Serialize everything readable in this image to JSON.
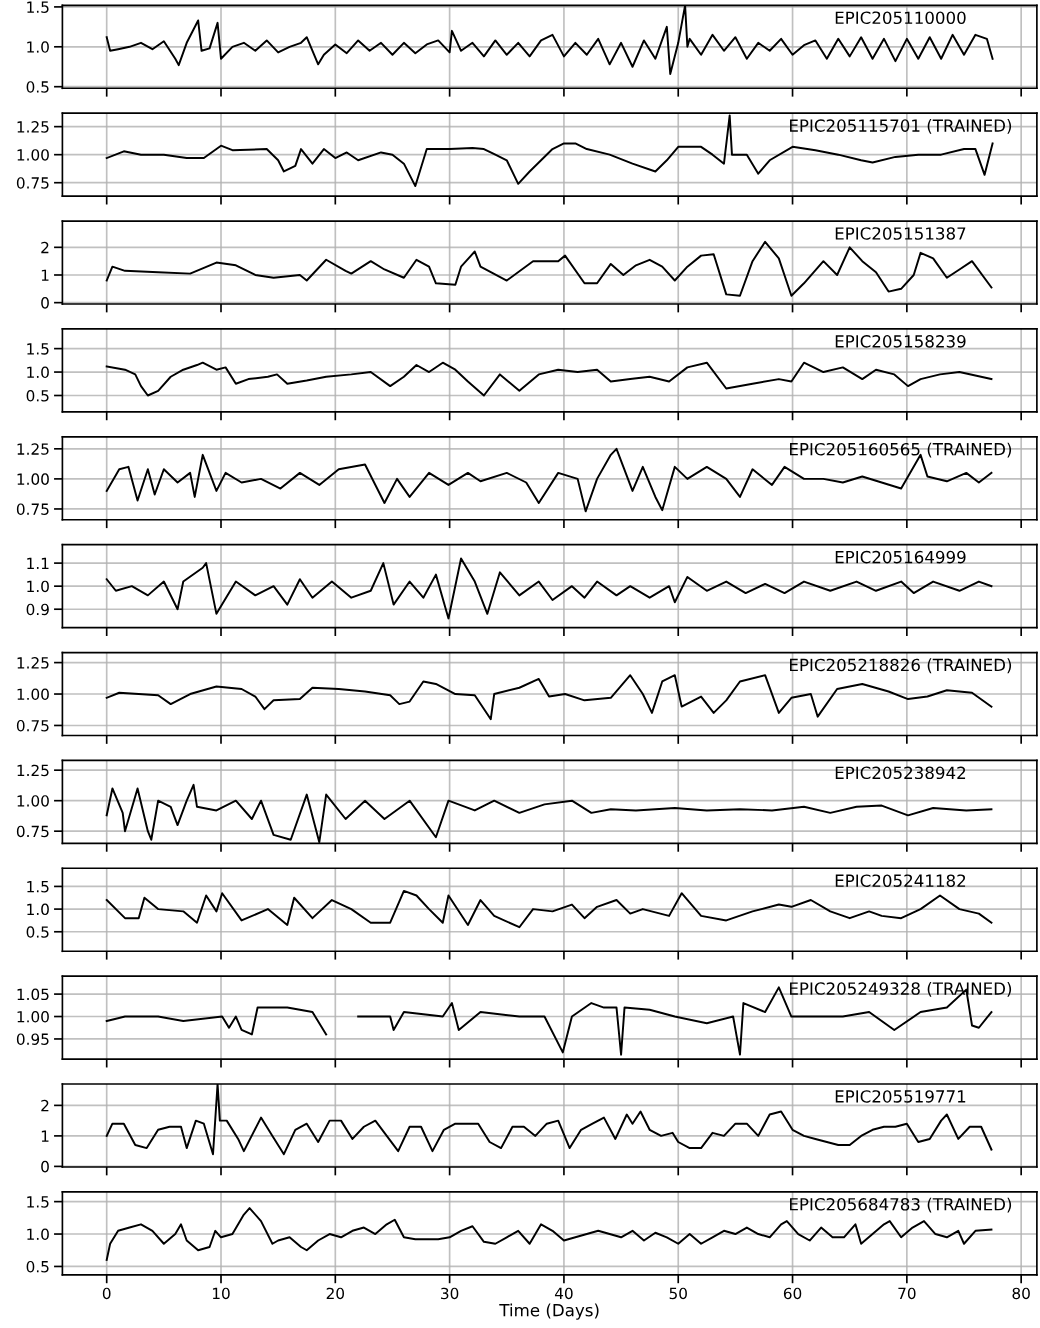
{
  "chart_data": [
    {
      "type": "line",
      "title": "EPIC205110000",
      "xlim": [
        -3.875,
        81.375
      ],
      "xticks": [
        0,
        10,
        20,
        30,
        40,
        50,
        60,
        70,
        80
      ],
      "ylim": [
        0.48,
        1.52
      ],
      "yticks": [
        0.5,
        {
          "value": 1,
          "label": "1.0"
        },
        1.5
      ],
      "grid": true,
      "tick_labels": "y",
      "series": [
        {
          "color": "#000000",
          "x": [
            0,
            0.3,
            1,
            2,
            3,
            4,
            5,
            6,
            6.3,
            7,
            8,
            8.3,
            9,
            9.7,
            10,
            11,
            12,
            13,
            14,
            15,
            16,
            17,
            17.5,
            18.5,
            19,
            20,
            21,
            22,
            23,
            24,
            25,
            26,
            27,
            28,
            29,
            30,
            30.2,
            31,
            32,
            33,
            34,
            35,
            36,
            37,
            38,
            39,
            40,
            41,
            42,
            43,
            44,
            45,
            46,
            47,
            48,
            49,
            49.3,
            50,
            50.6,
            50.8,
            51,
            52,
            53,
            54,
            55,
            56,
            57,
            58,
            59,
            60,
            61,
            62,
            63,
            64,
            65,
            66,
            67,
            68,
            69,
            70,
            71,
            72,
            73,
            74,
            75,
            76,
            77,
            77.5
          ],
          "values": [
            1.12,
            0.95,
            0.97,
            1.0,
            1.05,
            0.97,
            1.07,
            0.85,
            0.77,
            1.05,
            1.33,
            0.95,
            0.98,
            1.3,
            0.85,
            1.0,
            1.05,
            0.95,
            1.08,
            0.93,
            1.0,
            1.05,
            1.12,
            0.78,
            0.9,
            1.03,
            0.92,
            1.08,
            0.95,
            1.05,
            0.9,
            1.05,
            0.92,
            1.03,
            1.08,
            0.93,
            1.2,
            0.95,
            1.05,
            0.88,
            1.08,
            0.9,
            1.05,
            0.88,
            1.08,
            1.15,
            0.88,
            1.05,
            0.9,
            1.1,
            0.78,
            1.05,
            0.75,
            1.08,
            0.85,
            1.25,
            0.66,
            1.05,
            1.52,
            1.0,
            1.1,
            0.9,
            1.15,
            0.95,
            1.12,
            0.85,
            1.05,
            0.95,
            1.1,
            0.9,
            1.02,
            1.08,
            0.85,
            1.1,
            0.88,
            1.12,
            0.85,
            1.1,
            0.82,
            1.1,
            0.85,
            1.12,
            0.85,
            1.15,
            0.9,
            1.15,
            1.1,
            0.85
          ]
        }
      ]
    },
    {
      "type": "line",
      "title": "EPIC205115701 (TRAINED)",
      "xlim": [
        -3.875,
        81.375
      ],
      "xticks": [
        0,
        10,
        20,
        30,
        40,
        50,
        60,
        70,
        80
      ],
      "ylim": [
        0.63,
        1.37
      ],
      "yticks": [
        {
          "value": 0.75,
          "label": "0.75"
        },
        {
          "value": 1,
          "label": "1.00"
        },
        {
          "value": 1.25,
          "label": "1.25"
        }
      ],
      "grid": true,
      "tick_labels": "y",
      "series": [
        {
          "color": "#000000",
          "x": [
            0,
            1.5,
            3,
            5,
            7,
            8.5,
            10,
            11,
            14,
            15,
            15.5,
            16.5,
            17,
            18,
            19,
            20,
            21,
            22,
            24,
            25,
            26,
            27,
            28,
            30,
            32,
            33,
            34,
            35,
            36,
            37,
            38,
            39,
            40,
            41,
            42,
            44,
            46,
            48,
            49,
            50,
            52,
            53,
            54,
            54.5,
            54.7,
            56,
            57,
            58,
            60,
            62,
            64,
            66,
            67,
            69,
            71,
            73,
            75,
            76,
            76.8,
            77.5
          ],
          "values": [
            0.97,
            1.03,
            1.0,
            1.0,
            0.97,
            0.97,
            1.08,
            1.04,
            1.05,
            0.95,
            0.85,
            0.9,
            1.05,
            0.92,
            1.05,
            0.97,
            1.02,
            0.95,
            1.02,
            1.0,
            0.92,
            0.72,
            1.05,
            1.05,
            1.06,
            1.05,
            1.0,
            0.95,
            0.74,
            0.85,
            0.95,
            1.05,
            1.1,
            1.1,
            1.05,
            1.0,
            0.92,
            0.85,
            0.95,
            1.07,
            1.07,
            1.0,
            0.92,
            1.35,
            1.0,
            1.0,
            0.83,
            0.95,
            1.07,
            1.04,
            1.0,
            0.95,
            0.93,
            0.98,
            1.0,
            1.0,
            1.05,
            1.05,
            0.82,
            1.1
          ]
        }
      ]
    },
    {
      "type": "line",
      "title": "EPIC205151387",
      "xlim": [
        -3.875,
        81.375
      ],
      "xticks": [
        0,
        10,
        20,
        30,
        40,
        50,
        60,
        70,
        80
      ],
      "ylim": [
        -0.05,
        2.95
      ],
      "yticks": [
        0,
        1,
        2
      ],
      "grid": true,
      "tick_labels": "y",
      "series": [
        {
          "color": "#000000",
          "x": [
            0,
            0.5,
            1.6,
            4.5,
            7.3,
            9.6,
            11.3,
            13,
            14.6,
            16.9,
            17.5,
            19.2,
            20.9,
            21.4,
            23.1,
            24.3,
            26,
            27.1,
            28.2,
            28.8,
            30.5,
            31,
            32.2,
            32.7,
            35,
            37.3,
            39.5,
            40.1,
            41.8,
            42.9,
            44.1,
            45.2,
            46.3,
            47.5,
            48.6,
            49.7,
            50.8,
            52,
            53.1,
            54.2,
            55.4,
            56.5,
            57.6,
            58.8,
            59.9,
            61,
            62.7,
            63.9,
            65,
            66.1,
            67.3,
            68.4,
            69.5,
            70.6,
            71.2,
            72.3,
            73.5,
            74.6,
            75.7,
            77.4
          ],
          "values": [
            0.8,
            1.3,
            1.15,
            1.1,
            1.05,
            1.45,
            1.35,
            1.0,
            0.9,
            1.0,
            0.8,
            1.55,
            1.15,
            1.05,
            1.5,
            1.2,
            0.9,
            1.55,
            1.3,
            0.7,
            0.65,
            1.3,
            1.85,
            1.3,
            0.8,
            1.5,
            1.5,
            1.7,
            0.7,
            0.7,
            1.4,
            1.0,
            1.35,
            1.55,
            1.3,
            0.8,
            1.3,
            1.7,
            1.75,
            0.3,
            0.25,
            1.5,
            2.2,
            1.6,
            0.25,
            0.7,
            1.5,
            1.0,
            2.0,
            1.5,
            1.1,
            0.4,
            0.5,
            1.0,
            1.8,
            1.6,
            0.9,
            1.2,
            1.5,
            0.55
          ]
        }
      ]
    },
    {
      "type": "line",
      "title": "EPIC205158239",
      "xlim": [
        -3.875,
        81.375
      ],
      "xticks": [
        0,
        10,
        20,
        30,
        40,
        50,
        60,
        70,
        80
      ],
      "ylim": [
        0.15,
        1.92
      ],
      "yticks": [
        0.5,
        {
          "value": 1,
          "label": "1.0"
        },
        1.5
      ],
      "grid": true,
      "tick_labels": "y",
      "series": [
        {
          "color": "#000000",
          "x": [
            0,
            1.6,
            2.5,
            3,
            3.6,
            4.5,
            5.6,
            6.7,
            7.9,
            8.4,
            9.6,
            10.4,
            11.3,
            12.4,
            14.1,
            14.9,
            15.8,
            17.5,
            19.2,
            21.4,
            23.1,
            24.8,
            26,
            27.1,
            28.2,
            29.4,
            30.5,
            31.6,
            33,
            34.4,
            36.1,
            37.8,
            39.5,
            41.2,
            42.9,
            44.1,
            45.8,
            47.5,
            49.2,
            50.8,
            52.5,
            54.2,
            56.5,
            58.8,
            59.9,
            61,
            62.7,
            64.4,
            66.1,
            67.3,
            68.9,
            70.1,
            71.2,
            72.9,
            74.6,
            77.4
          ],
          "values": [
            1.12,
            1.05,
            0.95,
            0.7,
            0.5,
            0.6,
            0.9,
            1.05,
            1.15,
            1.2,
            1.05,
            1.1,
            0.75,
            0.85,
            0.9,
            0.95,
            0.75,
            0.82,
            0.9,
            0.95,
            1.0,
            0.7,
            0.9,
            1.15,
            1.0,
            1.2,
            1.05,
            0.8,
            0.5,
            0.95,
            0.6,
            0.95,
            1.05,
            1.0,
            1.05,
            0.8,
            0.85,
            0.9,
            0.8,
            1.1,
            1.2,
            0.65,
            0.75,
            0.85,
            0.8,
            1.2,
            1.0,
            1.1,
            0.85,
            1.05,
            0.95,
            0.7,
            0.85,
            0.95,
            1.0,
            0.85
          ]
        }
      ]
    },
    {
      "type": "line",
      "title": "EPIC205160565 (TRAINED)",
      "xlim": [
        -3.875,
        81.375
      ],
      "xticks": [
        0,
        10,
        20,
        30,
        40,
        50,
        60,
        70,
        80
      ],
      "ylim": [
        0.66,
        1.35
      ],
      "yticks": [
        {
          "value": 0.75,
          "label": "0.75"
        },
        {
          "value": 1,
          "label": "1.00"
        },
        {
          "value": 1.25,
          "label": "1.25"
        }
      ],
      "grid": true,
      "tick_labels": "y",
      "series": [
        {
          "color": "#000000",
          "x": [
            0,
            1.1,
            1.9,
            2.7,
            3.6,
            4.2,
            5,
            6.2,
            7.3,
            7.7,
            8.4,
            9.6,
            10.4,
            11.8,
            13.5,
            15.2,
            16.9,
            18.6,
            20.3,
            22.6,
            24.3,
            25.4,
            26.5,
            28.2,
            29.9,
            31.6,
            32.7,
            35,
            36.7,
            37.8,
            39.5,
            41.2,
            41.9,
            42.9,
            44.1,
            44.6,
            45.2,
            46,
            46.9,
            48,
            48.6,
            49.7,
            50.8,
            52.5,
            54.2,
            55.4,
            56.5,
            58.2,
            59.3,
            61,
            62.7,
            64.4,
            66.1,
            67.8,
            69.5,
            71.2,
            71.8,
            73.5,
            75.2,
            76.3,
            77.4
          ],
          "values": [
            0.9,
            1.08,
            1.1,
            0.82,
            1.08,
            0.87,
            1.08,
            0.97,
            1.05,
            0.85,
            1.2,
            0.9,
            1.05,
            0.97,
            1.0,
            0.92,
            1.05,
            0.95,
            1.08,
            1.12,
            0.8,
            1.0,
            0.85,
            1.05,
            0.95,
            1.05,
            0.98,
            1.05,
            0.97,
            0.8,
            1.05,
            1.0,
            0.73,
            1.0,
            1.2,
            1.25,
            1.1,
            0.9,
            1.1,
            0.85,
            0.74,
            1.1,
            1.0,
            1.1,
            1.0,
            0.85,
            1.08,
            0.95,
            1.1,
            1.0,
            1.0,
            0.97,
            1.02,
            0.97,
            0.92,
            1.2,
            1.02,
            0.98,
            1.05,
            0.97,
            1.05
          ]
        }
      ]
    },
    {
      "type": "line",
      "title": "EPIC205164999",
      "xlim": [
        -3.875,
        81.375
      ],
      "xticks": [
        0,
        10,
        20,
        30,
        40,
        50,
        60,
        70,
        80
      ],
      "ylim": [
        0.82,
        1.18
      ],
      "yticks": [
        0.9,
        {
          "value": 1,
          "label": "1.0"
        },
        1.1
      ],
      "grid": true,
      "tick_labels": "y",
      "series": [
        {
          "color": "#000000",
          "x": [
            0,
            0.8,
            2.2,
            3.6,
            5,
            6.2,
            6.7,
            8.4,
            8.7,
            9.6,
            11.3,
            13,
            14.6,
            15.8,
            16.9,
            18,
            19.7,
            21.4,
            23.1,
            24.2,
            25.1,
            26.5,
            27.7,
            28.8,
            29.9,
            31,
            32.2,
            33.3,
            34.4,
            36.1,
            37.8,
            39,
            40.7,
            41.8,
            42.9,
            44.6,
            45.8,
            47.5,
            49.2,
            49.7,
            50.8,
            52.5,
            54.2,
            55.9,
            57.6,
            59.3,
            61,
            63.3,
            65.6,
            67.3,
            69.5,
            70.6,
            72.3,
            74.6,
            76.3,
            77.4
          ],
          "values": [
            1.03,
            0.98,
            1.0,
            0.96,
            1.02,
            0.9,
            1.02,
            1.08,
            1.1,
            0.88,
            1.02,
            0.96,
            1.0,
            0.92,
            1.03,
            0.95,
            1.02,
            0.95,
            0.98,
            1.1,
            0.92,
            1.02,
            0.95,
            1.05,
            0.86,
            1.12,
            1.02,
            0.88,
            1.06,
            0.96,
            1.02,
            0.94,
            1.0,
            0.95,
            1.02,
            0.96,
            1.0,
            0.95,
            1.0,
            0.93,
            1.04,
            0.98,
            1.02,
            0.97,
            1.01,
            0.97,
            1.02,
            0.98,
            1.02,
            0.98,
            1.02,
            0.97,
            1.02,
            0.98,
            1.02,
            1.0
          ]
        }
      ]
    },
    {
      "type": "line",
      "title": "EPIC205218826 (TRAINED)",
      "xlim": [
        -3.875,
        81.375
      ],
      "xticks": [
        0,
        10,
        20,
        30,
        40,
        50,
        60,
        70,
        80
      ],
      "ylim": [
        0.67,
        1.33
      ],
      "yticks": [
        {
          "value": 0.75,
          "label": "0.75"
        },
        {
          "value": 1,
          "label": "1.00"
        },
        {
          "value": 1.25,
          "label": "1.25"
        }
      ],
      "grid": true,
      "tick_labels": "y",
      "series": [
        {
          "color": "#000000",
          "x": [
            0,
            1.1,
            4.5,
            5.6,
            7.3,
            9.6,
            11.8,
            13,
            13.8,
            14.6,
            16.9,
            18,
            20.3,
            22.6,
            24.8,
            25.6,
            26.5,
            27.7,
            28.8,
            30.5,
            32.2,
            33.6,
            33.9,
            36.1,
            37.8,
            38.7,
            40.1,
            41.8,
            44.1,
            45.8,
            46.9,
            47.7,
            48.6,
            49.7,
            50.3,
            52,
            53.1,
            54.2,
            55.4,
            57.6,
            58.8,
            59.9,
            61.6,
            62.2,
            63.9,
            66.1,
            68.4,
            70.1,
            71.8,
            73.5,
            75.7,
            77.4
          ],
          "values": [
            0.97,
            1.01,
            0.99,
            0.92,
            1.0,
            1.06,
            1.04,
            0.98,
            0.88,
            0.95,
            0.96,
            1.05,
            1.04,
            1.02,
            0.99,
            0.92,
            0.94,
            1.1,
            1.08,
            1.0,
            0.99,
            0.8,
            1.0,
            1.05,
            1.12,
            0.98,
            1.0,
            0.95,
            0.97,
            1.15,
            1.0,
            0.85,
            1.1,
            1.15,
            0.9,
            0.98,
            0.85,
            0.95,
            1.1,
            1.15,
            0.85,
            0.97,
            1.0,
            0.82,
            1.04,
            1.08,
            1.02,
            0.96,
            0.98,
            1.03,
            1.01,
            0.9
          ]
        }
      ]
    },
    {
      "type": "line",
      "title": "EPIC205238942",
      "xlim": [
        -3.875,
        81.375
      ],
      "xticks": [
        0,
        10,
        20,
        30,
        40,
        50,
        60,
        70,
        80
      ],
      "ylim": [
        0.65,
        1.33
      ],
      "yticks": [
        {
          "value": 0.75,
          "label": "0.75"
        },
        {
          "value": 1,
          "label": "1.00"
        },
        {
          "value": 1.25,
          "label": "1.25"
        }
      ],
      "grid": true,
      "tick_labels": "y",
      "series": [
        {
          "color": "#000000",
          "x": [
            0,
            0.5,
            1.4,
            1.6,
            2.7,
            3.6,
            3.9,
            4.5,
            5.6,
            6.2,
            7,
            7.6,
            7.9,
            9.6,
            11.3,
            12.7,
            13.5,
            14.6,
            16.1,
            17.5,
            18.6,
            19.2,
            20.9,
            22.6,
            24.3,
            26.5,
            28.8,
            29.9,
            32.2,
            33.9,
            36.1,
            38.3,
            40.7,
            42.4,
            44.1,
            46.3,
            49.7,
            52.5,
            55.4,
            58.2,
            61,
            63.3,
            65.6,
            67.8,
            70.1,
            72.3,
            75.2,
            77.4
          ],
          "values": [
            0.88,
            1.1,
            0.9,
            0.75,
            1.1,
            0.75,
            0.68,
            1.0,
            0.95,
            0.8,
            1.0,
            1.13,
            0.95,
            0.92,
            1.0,
            0.85,
            1.0,
            0.72,
            0.68,
            1.05,
            0.66,
            1.05,
            0.85,
            1.0,
            0.85,
            1.0,
            0.7,
            1.0,
            0.92,
            1.0,
            0.9,
            0.97,
            1.0,
            0.9,
            0.93,
            0.92,
            0.94,
            0.92,
            0.93,
            0.92,
            0.95,
            0.9,
            0.95,
            0.96,
            0.88,
            0.94,
            0.92,
            0.93
          ]
        }
      ]
    },
    {
      "type": "line",
      "title": "EPIC205241182",
      "xlim": [
        -3.875,
        81.375
      ],
      "xticks": [
        0,
        10,
        20,
        30,
        40,
        50,
        60,
        70,
        80
      ],
      "ylim": [
        0.07,
        1.9
      ],
      "yticks": [
        0.5,
        {
          "value": 1,
          "label": "1.0"
        },
        1.5
      ],
      "grid": true,
      "tick_labels": "y",
      "series": [
        {
          "color": "#000000",
          "x": [
            0,
            1.6,
            2.8,
            3.3,
            4.5,
            6.7,
            7.9,
            8.7,
            9.6,
            10.1,
            11.8,
            14.1,
            15.8,
            16.4,
            18,
            19.7,
            21.4,
            23.1,
            24.8,
            26,
            27.1,
            28.2,
            29.4,
            29.9,
            31.6,
            32.7,
            33.9,
            36.1,
            37.3,
            39,
            40.7,
            41.8,
            42.9,
            44.6,
            45.8,
            46.9,
            49.2,
            50.3,
            52,
            54.2,
            56.5,
            58.8,
            59.9,
            61.6,
            63.3,
            65,
            66.7,
            67.8,
            69.5,
            71.2,
            72.9,
            74.6,
            76.3,
            77.4
          ],
          "values": [
            1.2,
            0.8,
            0.8,
            1.25,
            1.0,
            0.95,
            0.7,
            1.3,
            0.95,
            1.35,
            0.75,
            1.0,
            0.65,
            1.25,
            0.8,
            1.2,
            1.0,
            0.7,
            0.7,
            1.4,
            1.3,
            1.0,
            0.7,
            1.3,
            0.65,
            1.2,
            0.85,
            0.6,
            1.0,
            0.95,
            1.1,
            0.8,
            1.05,
            1.2,
            0.9,
            1.0,
            0.85,
            1.35,
            0.85,
            0.75,
            0.95,
            1.1,
            1.05,
            1.2,
            0.95,
            0.8,
            0.95,
            0.85,
            0.8,
            1.0,
            1.3,
            1.0,
            0.9,
            0.7
          ]
        }
      ]
    },
    {
      "type": "line",
      "title": "EPIC205249328 (TRAINED)",
      "xlim": [
        -3.875,
        81.375
      ],
      "xticks": [
        0,
        10,
        20,
        30,
        40,
        50,
        60,
        70,
        80
      ],
      "ylim": [
        0.905,
        1.09
      ],
      "yticks": [
        {
          "value": 0.95,
          "label": "0.95"
        },
        {
          "value": 1,
          "label": "1.00"
        },
        {
          "value": 1.05,
          "label": "1.05"
        }
      ],
      "grid": true,
      "tick_labels": "y",
      "series": [
        {
          "color": "#000000",
          "x": [
            0,
            1.6,
            4.5,
            6.7,
            10.1,
            10.7,
            11.3,
            11.8,
            12.7,
            13.2,
            15.8,
            18,
            19.2,
            20.3,
            21.7,
            22,
            24.8,
            25.1,
            26,
            29.4,
            30.2,
            30.8,
            32.7,
            36.1,
            38.3,
            39.9,
            40.7,
            42.4,
            43.5,
            44.6,
            45,
            45.3,
            47.5,
            49.7,
            52.5,
            54.8,
            55.4,
            55.7,
            57.6,
            58.8,
            59.9,
            62.2,
            64.4,
            66.7,
            68.9,
            71.2,
            73.5,
            75.2,
            75.7,
            76.3,
            77.4
          ],
          "values": [
            0.99,
            1.0,
            1.0,
            0.99,
            1.0,
            0.975,
            1.0,
            0.97,
            0.96,
            1.02,
            1.02,
            1.01,
            0.96,
            null,
            null,
            1.0,
            1.0,
            0.97,
            1.01,
            1.0,
            1.03,
            0.97,
            1.01,
            1.0,
            1.0,
            0.92,
            1.0,
            1.03,
            1.02,
            1.02,
            0.915,
            1.02,
            1.015,
            1.0,
            0.985,
            1.0,
            0.915,
            1.03,
            1.01,
            1.065,
            1.0,
            1.0,
            1.0,
            1.01,
            0.97,
            1.01,
            1.02,
            1.06,
            0.98,
            0.975,
            1.01
          ]
        }
      ]
    },
    {
      "type": "line",
      "title": "EPIC205519771",
      "xlim": [
        -3.875,
        81.375
      ],
      "xticks": [
        0,
        10,
        20,
        30,
        40,
        50,
        60,
        70,
        80
      ],
      "ylim": [
        -0.02,
        2.7
      ],
      "yticks": [
        0,
        1,
        2
      ],
      "grid": true,
      "tick_labels": "y",
      "series": [
        {
          "color": "#000000",
          "x": [
            0,
            0.5,
            1.5,
            2.5,
            3.5,
            4.5,
            5.5,
            6.5,
            7,
            7.8,
            8.5,
            9.3,
            9.7,
            9.9,
            10.5,
            11.5,
            12,
            13.5,
            14.5,
            15.5,
            16.5,
            17.5,
            18.5,
            19.5,
            20.5,
            21.5,
            22.5,
            23.5,
            24.5,
            25.5,
            26.5,
            27.5,
            28.5,
            29.5,
            30.5,
            31.5,
            32.5,
            33.5,
            34.5,
            35.5,
            36.5,
            37.5,
            38.5,
            39.5,
            40.5,
            41.5,
            42.5,
            43.5,
            44.5,
            45.5,
            46,
            46.7,
            47.5,
            48.5,
            49.5,
            50,
            51,
            52,
            53,
            54,
            55,
            56,
            57,
            58,
            59,
            60,
            61,
            62,
            63,
            64,
            65,
            66,
            67,
            68,
            69,
            70,
            71,
            72,
            73,
            73.5,
            74.5,
            75.5,
            76.5,
            77.4
          ],
          "values": [
            1.0,
            1.4,
            1.4,
            0.7,
            0.6,
            1.2,
            1.3,
            1.3,
            0.6,
            1.5,
            1.4,
            0.4,
            2.7,
            1.5,
            1.5,
            0.9,
            0.5,
            1.6,
            1.0,
            0.4,
            1.2,
            1.4,
            0.8,
            1.5,
            1.5,
            0.9,
            1.3,
            1.5,
            1.0,
            0.5,
            1.3,
            1.3,
            0.5,
            1.2,
            1.4,
            1.4,
            1.4,
            0.8,
            0.6,
            1.3,
            1.3,
            1.0,
            1.4,
            1.5,
            0.6,
            1.2,
            1.4,
            1.6,
            0.9,
            1.7,
            1.4,
            1.8,
            1.2,
            1.0,
            1.1,
            0.8,
            0.6,
            0.6,
            1.1,
            1.0,
            1.4,
            1.4,
            1.0,
            1.7,
            1.8,
            1.2,
            1.0,
            0.9,
            0.8,
            0.7,
            0.7,
            1.0,
            1.2,
            1.3,
            1.3,
            1.4,
            0.8,
            0.9,
            1.5,
            1.7,
            0.9,
            1.3,
            1.3,
            0.55
          ]
        }
      ]
    },
    {
      "type": "line",
      "title": "EPIC205684783 (TRAINED)",
      "xlabel": "Time (Days)",
      "xlim": [
        -3.875,
        81.375
      ],
      "xticks": [
        0,
        10,
        20,
        30,
        40,
        50,
        60,
        70,
        80
      ],
      "ylim": [
        0.37,
        1.65
      ],
      "yticks": [
        0.5,
        {
          "value": 1,
          "label": "1.0"
        },
        1.5
      ],
      "grid": true,
      "series": [
        {
          "color": "#000000",
          "x": [
            0,
            0.3,
            1,
            2,
            3,
            4,
            5,
            6,
            6.5,
            7,
            8,
            9,
            9.5,
            10,
            11,
            12,
            12.5,
            13.5,
            14.5,
            15,
            16,
            17,
            17.5,
            18.5,
            19.5,
            20.5,
            21.5,
            22.5,
            23.5,
            24.5,
            25.2,
            26,
            27,
            29,
            30,
            31,
            32,
            33,
            34,
            35,
            36,
            37,
            38,
            39,
            40,
            41,
            42,
            43,
            44,
            45,
            46,
            47,
            48,
            49,
            50,
            51,
            52,
            53,
            54,
            55,
            56,
            57,
            58,
            59,
            59.5,
            60.5,
            61.5,
            62.5,
            63.5,
            64.5,
            65.5,
            66,
            67,
            68,
            68.5,
            69.5,
            70.5,
            71.5,
            72.5,
            73.5,
            74.5,
            75,
            76,
            77.4
          ],
          "values": [
            0.6,
            0.85,
            1.05,
            1.1,
            1.15,
            1.05,
            0.85,
            1.0,
            1.15,
            0.9,
            0.75,
            0.8,
            1.05,
            0.95,
            1.0,
            1.3,
            1.4,
            1.2,
            0.85,
            0.9,
            0.95,
            0.8,
            0.75,
            0.9,
            1.0,
            0.95,
            1.05,
            1.1,
            1.0,
            1.15,
            1.22,
            0.95,
            0.92,
            0.92,
            0.95,
            1.05,
            1.12,
            0.88,
            0.85,
            0.95,
            1.05,
            0.85,
            1.15,
            1.05,
            0.9,
            0.95,
            1.0,
            1.05,
            1.0,
            0.95,
            1.05,
            0.9,
            1.02,
            0.95,
            0.85,
            1.0,
            0.85,
            0.95,
            1.05,
            1.0,
            1.1,
            1.0,
            0.95,
            1.15,
            1.2,
            1.0,
            0.9,
            1.1,
            0.95,
            0.95,
            1.15,
            0.85,
            1.0,
            1.15,
            1.2,
            0.95,
            1.1,
            1.2,
            1.0,
            0.95,
            1.05,
            0.85,
            1.05,
            1.07
          ]
        }
      ]
    }
  ]
}
